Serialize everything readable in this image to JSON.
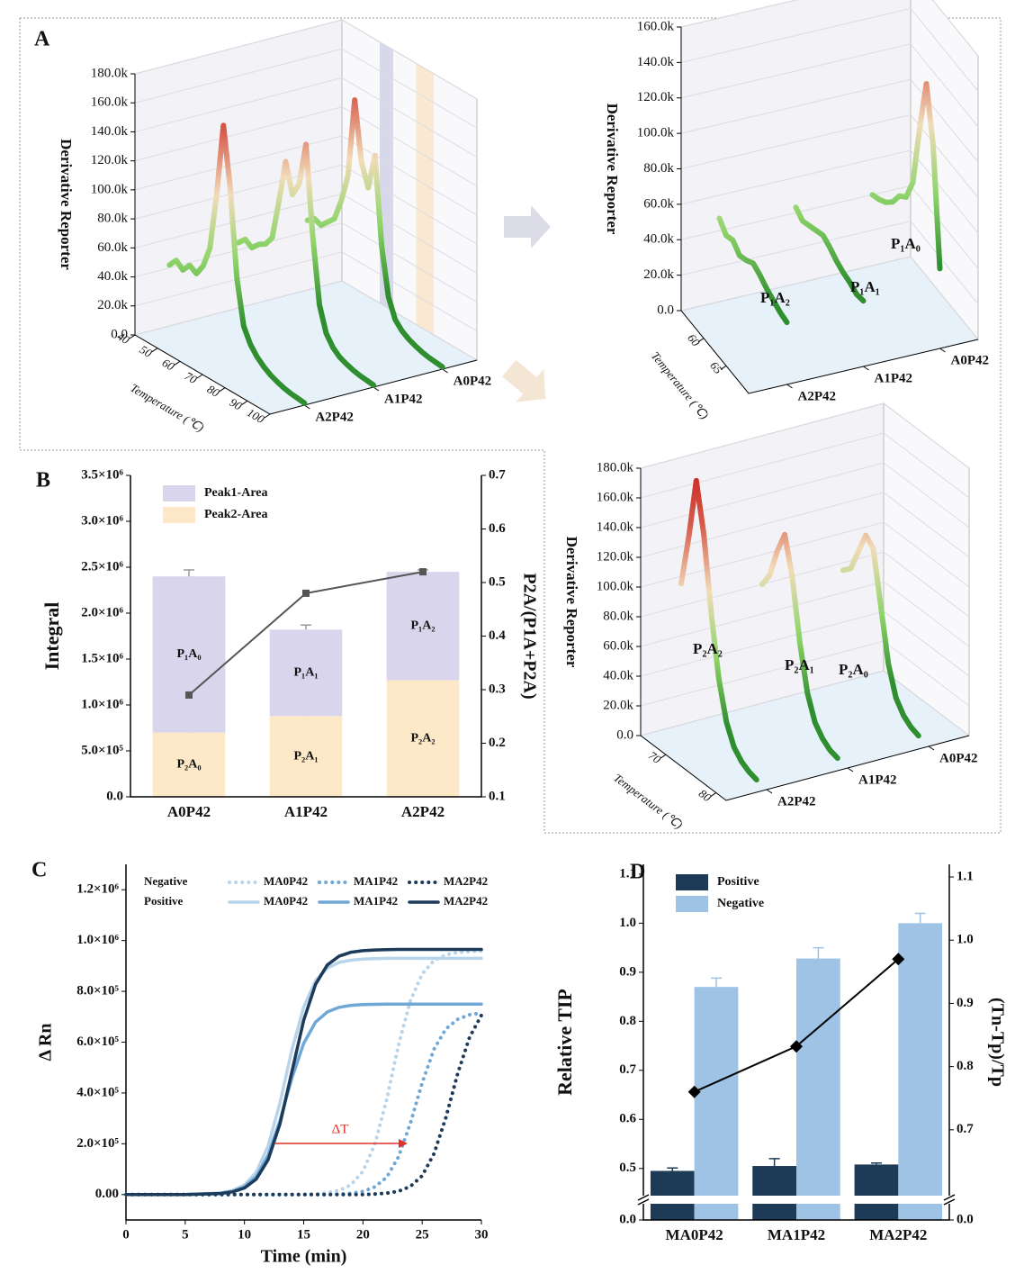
{
  "chart_data": [
    {
      "type": "line3d",
      "panel": "A",
      "ylabel": "Derivative Reporter",
      "xlabel": "Temperature (℃)",
      "xlim": [
        40,
        100
      ],
      "xticks": [
        40,
        50,
        60,
        70,
        80,
        90,
        100
      ],
      "ylim": [
        0,
        180000
      ],
      "yticks": [
        {
          "value": 0,
          "label": "0.0"
        },
        {
          "value": 20000,
          "label": "20.0k"
        },
        {
          "value": 40000,
          "label": "40.0k"
        },
        {
          "value": 60000,
          "label": "60.0k"
        },
        {
          "value": 80000,
          "label": "80.0k"
        },
        {
          "value": 100000,
          "label": "100.0k"
        },
        {
          "value": 120000,
          "label": "120.0k"
        },
        {
          "value": 140000,
          "label": "140.0k"
        },
        {
          "value": 160000,
          "label": "160.0k"
        },
        {
          "value": 180000,
          "label": "180.0k"
        }
      ],
      "colormap": [
        "#2f8f2f",
        "#8fd46a",
        "#f1dcb8",
        "#d65a4a",
        "#c81e1e"
      ],
      "x": [
        40,
        43,
        46,
        49,
        52,
        55,
        58,
        61,
        64,
        67,
        70,
        73,
        76,
        79,
        82,
        85,
        88,
        91,
        94,
        97,
        100
      ],
      "series": [
        {
          "name": "A2P42",
          "values": [
            42000,
            48000,
            44000,
            50000,
            47000,
            55000,
            70000,
            110000,
            160000,
            120000,
            60000,
            30000,
            20000,
            14000,
            10000,
            7000,
            5000,
            3500,
            2500,
            2000,
            1500
          ]
        },
        {
          "name": "A1P42",
          "values": [
            45000,
            50000,
            47000,
            52000,
            55000,
            62000,
            90000,
            120000,
            100000,
            110000,
            140000,
            80000,
            35000,
            18000,
            11000,
            7000,
            5000,
            3500,
            2500,
            2000,
            1500
          ]
        },
        {
          "name": "A0P42",
          "values": [
            48000,
            52000,
            50000,
            55000,
            60000,
            75000,
            95000,
            150000,
            110000,
            95000,
            120000,
            60000,
            28000,
            15000,
            10000,
            7000,
            5000,
            3500,
            2500,
            2000,
            1500
          ]
        }
      ]
    },
    {
      "type": "line3d",
      "ylabel": "Derivative Reporter",
      "xlabel": "Temperature (℃)",
      "xlim": [
        55,
        70
      ],
      "xticks": [
        60,
        65
      ],
      "ylim": [
        0,
        160000
      ],
      "yticks": [
        {
          "value": 0,
          "label": "0.0"
        },
        {
          "value": 20000,
          "label": "20.0k"
        },
        {
          "value": 40000,
          "label": "40.0k"
        },
        {
          "value": 60000,
          "label": "60.0k"
        },
        {
          "value": 80000,
          "label": "80.0k"
        },
        {
          "value": 100000,
          "label": "100.0k"
        },
        {
          "value": 120000,
          "label": "120.0k"
        },
        {
          "value": 140000,
          "label": "140.0k"
        },
        {
          "value": 160000,
          "label": "160.0k"
        }
      ],
      "colormap": [
        "#2f8f2f",
        "#8fd46a",
        "#f1dcb8",
        "#d65a4a",
        "#c81e1e"
      ],
      "annotations": [
        "P₁A₂",
        "P₁A₁",
        "P₁A₀"
      ],
      "x": [
        55,
        56.5,
        58,
        59.5,
        61,
        62.5,
        64,
        65.5,
        67,
        68.5,
        70
      ],
      "series": [
        {
          "name": "A2P42",
          "values": [
            47000,
            42000,
            44000,
            40000,
            42000,
            45000,
            43000,
            40000,
            38000,
            36000,
            35000
          ]
        },
        {
          "name": "A1P42",
          "values": [
            43000,
            40000,
            42000,
            44000,
            46000,
            44000,
            41000,
            39000,
            38000,
            36000,
            37000
          ]
        },
        {
          "name": "A0P42",
          "values": [
            40000,
            42000,
            45000,
            50000,
            58000,
            62000,
            75000,
            110000,
            140000,
            110000,
            45000
          ]
        }
      ]
    },
    {
      "type": "line3d",
      "ylabel": "Derivative Reporter",
      "xlabel": "Temperature (℃)",
      "xlim": [
        65,
        82
      ],
      "xticks": [
        70,
        80
      ],
      "ylim": [
        0,
        180000
      ],
      "yticks": [
        {
          "value": 0,
          "label": "0.0"
        },
        {
          "value": 20000,
          "label": "20.0k"
        },
        {
          "value": 40000,
          "label": "40.0k"
        },
        {
          "value": 60000,
          "label": "60.0k"
        },
        {
          "value": 80000,
          "label": "80.0k"
        },
        {
          "value": 100000,
          "label": "100.0k"
        },
        {
          "value": 120000,
          "label": "120.0k"
        },
        {
          "value": 140000,
          "label": "140.0k"
        },
        {
          "value": 160000,
          "label": "160.0k"
        },
        {
          "value": 180000,
          "label": "180.0k"
        }
      ],
      "colormap": [
        "#2f8f2f",
        "#8fd46a",
        "#f1dcb8",
        "#d65a4a",
        "#c81e1e"
      ],
      "annotations": [
        "P₂A₂",
        "P₂A₁",
        "P₂A₀"
      ],
      "x": [
        65,
        66.5,
        68,
        69.5,
        71,
        72.5,
        74,
        75.5,
        77,
        78.5,
        80
      ],
      "series": [
        {
          "name": "A2P42",
          "values": [
            95000,
            130000,
            172000,
            140000,
            90000,
            50000,
            25000,
            12000,
            6000,
            3000,
            1500
          ]
        },
        {
          "name": "A1P42",
          "values": [
            80000,
            90000,
            110000,
            125000,
            100000,
            60000,
            30000,
            14000,
            7000,
            3000,
            1500
          ]
        },
        {
          "name": "A0P42",
          "values": [
            75000,
            80000,
            95000,
            110000,
            105000,
            70000,
            35000,
            16000,
            8000,
            4000,
            2000
          ]
        }
      ]
    },
    {
      "type": "bar",
      "stacked": true,
      "panel": "B",
      "ylabel": "Integral",
      "y2label": "P2A/(P1A+P2A)",
      "categories": [
        "A0P42",
        "A1P42",
        "A2P42"
      ],
      "ylim": [
        0,
        3500000
      ],
      "yticks": [
        {
          "value": 0,
          "label": "0.0"
        },
        {
          "value": 500000,
          "label": "5.0×10⁵"
        },
        {
          "value": 1000000,
          "label": "1.0×10⁶"
        },
        {
          "value": 1500000,
          "label": "1.5×10⁶"
        },
        {
          "value": 2000000,
          "label": "2.0×10⁶"
        },
        {
          "value": 2500000,
          "label": "2.5×10⁶"
        },
        {
          "value": 3000000,
          "label": "3.0×10⁶"
        },
        {
          "value": 3500000,
          "label": "3.5×10⁶"
        }
      ],
      "y2lim": [
        0.1,
        0.7
      ],
      "y2ticks": [
        0.1,
        0.2,
        0.3,
        0.4,
        0.5,
        0.6,
        0.7
      ],
      "legend": "upper left",
      "series": [
        {
          "name": "Peak1-Area",
          "color": "#d9d5ec",
          "error_color": "#9a9a9a",
          "values": [
            1700000,
            940000,
            1180000
          ],
          "errors": [
            70000,
            50000,
            20000
          ],
          "value_labels": [
            "P₁A₀",
            "P₁A₁",
            "P₁A₂"
          ]
        },
        {
          "name": "Peak2-Area",
          "color": "#fde9c8",
          "error_color": "#9a9a9a",
          "values": [
            700000,
            880000,
            1270000
          ],
          "errors": [
            30000,
            70000,
            20000
          ],
          "value_labels": [
            "P₂A₀",
            "P₂A₁",
            "P₂A₂"
          ]
        },
        {
          "axis": "y2",
          "color": "#555555",
          "marker": "square",
          "values": [
            0.29,
            0.48,
            0.52
          ]
        }
      ]
    },
    {
      "type": "line",
      "panel": "C",
      "xlabel": "Time (min)",
      "ylabel": "Δ Rn",
      "xlim": [
        0,
        30
      ],
      "xticks": [
        0,
        5,
        10,
        15,
        20,
        25,
        30
      ],
      "ylim": [
        -100000,
        1300000
      ],
      "yticks": [
        {
          "value": 0,
          "label": "0.00"
        },
        {
          "value": 200000,
          "label": "2.0×10⁵"
        },
        {
          "value": 400000,
          "label": "4.0×10⁵"
        },
        {
          "value": 600000,
          "label": "6.0×10⁵"
        },
        {
          "value": 800000,
          "label": "8.0×10⁵"
        },
        {
          "value": 1000000,
          "label": "1.0×10⁶"
        },
        {
          "value": 1200000,
          "label": "1.2×10⁶"
        }
      ],
      "legend_rows": [
        "Negative",
        "Positive"
      ],
      "annotations": [
        "ΔT"
      ],
      "annotation_color": "#e0302a",
      "x": [
        0,
        5,
        8,
        9,
        10,
        11,
        12,
        13,
        14,
        15,
        16,
        17,
        18,
        19,
        20,
        21,
        22,
        23,
        24,
        25,
        26,
        27,
        28,
        29,
        30
      ],
      "series": [
        {
          "name": "MA0P42",
          "color": "#b8d4ea",
          "dash": true,
          "values": [
            0,
            0,
            0,
            0,
            0,
            0,
            0,
            0,
            0,
            1100,
            2800,
            7000,
            16000,
            39000,
            91000,
            198000,
            373000,
            587000,
            762000,
            869000,
            921000,
            944000,
            953000,
            957000,
            959000
          ]
        },
        {
          "name": "MA1P42",
          "color": "#6fa8d6",
          "dash": true,
          "values": [
            0,
            0,
            0,
            0,
            0,
            0,
            0,
            0,
            0,
            0,
            0,
            0,
            2000,
            5000,
            12000,
            30000,
            68000,
            148000,
            280000,
            440000,
            572000,
            652000,
            690000,
            708000,
            715000
          ]
        },
        {
          "name": "MA2P42",
          "color": "#1c3a5a",
          "dash": true,
          "values": [
            0,
            0,
            0,
            0,
            0,
            0,
            0,
            0,
            0,
            0,
            0,
            0,
            0,
            0,
            0,
            2200,
            5500,
            13000,
            32000,
            74000,
            161000,
            303000,
            477000,
            619000,
            706000
          ]
        },
        {
          "name": "MA0P42",
          "color": "#b8d4ea",
          "dash": false,
          "values": [
            0,
            0,
            6500,
            16000,
            38000,
            88000,
            192000,
            362000,
            568000,
            738000,
            842000,
            892000,
            914000,
            923000,
            927000,
            929000,
            930000,
            930000,
            930000,
            930000,
            930000,
            930000,
            930000,
            930000,
            930000
          ]
        },
        {
          "name": "MA1P42",
          "color": "#6fa8d6",
          "dash": false,
          "values": [
            0,
            0,
            5000,
            13000,
            31000,
            71000,
            155000,
            292000,
            458000,
            595000,
            679000,
            719000,
            737000,
            745000,
            748000,
            749000,
            750000,
            750000,
            750000,
            750000,
            750000,
            750000,
            750000,
            750000,
            750000
          ]
        },
        {
          "name": "MA2P42",
          "color": "#1c3a5a",
          "dash": false,
          "values": [
            0,
            0,
            4300,
            10600,
            26000,
            61000,
            137000,
            279000,
            482500,
            686000,
            828000,
            904000,
            939000,
            954000,
            960000,
            963000,
            964000,
            965000,
            965000,
            965000,
            965000,
            965000,
            965000,
            965000,
            965000
          ]
        }
      ]
    },
    {
      "type": "bar",
      "stacked": false,
      "panel": "D",
      "ylabel": "Relative TIP",
      "y2label": "(Tn-Tp)/Tp",
      "categories": [
        "MA0P42",
        "MA1P42",
        "MA2P42"
      ],
      "ylim": [
        0,
        1.12
      ],
      "ybreak": [
        0.03,
        0.45
      ],
      "yticks": [
        {
          "value": 0,
          "label": "0.0"
        },
        0.5,
        0.6,
        0.7,
        0.8,
        0.9,
        {
          "value": 1,
          "label": "1.0"
        },
        1.1
      ],
      "y2lim": [
        0,
        1.12
      ],
      "y2break": [
        0.03,
        0.6
      ],
      "y2ticks": [
        {
          "value": 0,
          "label": "0.0"
        },
        0.7,
        0.8,
        0.9,
        {
          "value": 1,
          "label": "1.0"
        },
        1.1
      ],
      "legend": "upper left",
      "series": [
        {
          "name": "Positive",
          "color": "#1d3a56",
          "error_color": "#1d3a56",
          "values": [
            0.495,
            0.505,
            0.508
          ],
          "errors": [
            0.006,
            0.015,
            0.003
          ]
        },
        {
          "name": "Negative",
          "color": "#9ec3e5",
          "error_color": "#9ec3e5",
          "values": [
            0.87,
            0.928,
            1.0
          ],
          "errors": [
            0.018,
            0.022,
            0.02
          ]
        },
        {
          "axis": "y2",
          "color": "#000000",
          "marker": "diamond",
          "values": [
            0.76,
            0.832,
            0.97
          ]
        }
      ]
    }
  ]
}
